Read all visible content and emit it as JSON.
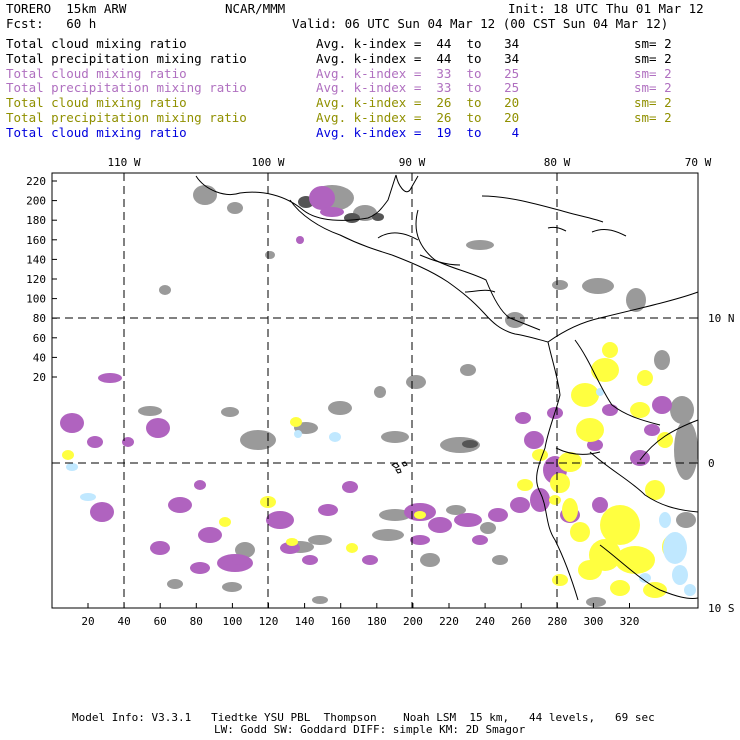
{
  "header": {
    "model": "TORERO  15km ARW",
    "org": "NCAR/MMM",
    "init": "Init: 18 UTC Thu 01 Mar 12",
    "fcst": "Fcst:   60 h",
    "valid": "Valid: 06 UTC Sun 04 Mar 12 (00 CST Sun 04 Mar 12)"
  },
  "legend": [
    {
      "field": "Total cloud mixing ratio",
      "range": "Avg. k-index =  44  to   34",
      "sm": "sm= 2",
      "color": "#000000"
    },
    {
      "field": "Total precipitation mixing ratio",
      "range": "Avg. k-index =  44  to   34",
      "sm": "sm= 2",
      "color": "#000000"
    },
    {
      "field": "Total cloud mixing ratio",
      "range": "Avg. k-index =  33  to   25",
      "sm": "sm= 2",
      "color": "#b070c0"
    },
    {
      "field": "Total precipitation mixing ratio",
      "range": "Avg. k-index =  33  to   25",
      "sm": "sm= 2",
      "color": "#b070c0"
    },
    {
      "field": "Total cloud mixing ratio",
      "range": "Avg. k-index =  26  to   20",
      "sm": "sm= 2",
      "color": "#909000"
    },
    {
      "field": "Total precipitation mixing ratio",
      "range": "Avg. k-index =  26  to   20",
      "sm": "sm= 2",
      "color": "#909000"
    },
    {
      "field": "Total cloud mixing ratio",
      "range": "Avg. k-index =  19  to    4",
      "sm": "",
      "color": "#0000dd"
    }
  ],
  "map": {
    "left_ticks": [
      "220",
      "200",
      "180",
      "160",
      "140",
      "120",
      "100",
      "80",
      "60",
      "40",
      "20"
    ],
    "bottom_ticks": [
      "20",
      "40",
      "60",
      "80",
      "100",
      "120",
      "140",
      "160",
      "180",
      "200",
      "220",
      "240",
      "260",
      "280",
      "300",
      "320"
    ],
    "top_lon_labels": [
      "110 W",
      "100 W",
      "90 W",
      "80 W",
      "70 W"
    ],
    "right_lat_labels": [
      "10 N",
      "0",
      "10 S"
    ],
    "colors": {
      "gray": "#9a9a9a",
      "dark": "#555555",
      "purple": "#b063bf",
      "yellow": "#ffff40",
      "lightblue": "#c0e8ff"
    }
  },
  "footer": {
    "line1": "Model Info: V3.3.1   Tiedtke YSU PBL  Thompson    Noah LSM  15 km,   44 levels,   69 sec",
    "line2": "LW: Godd SW: Goddard DIFF: simple KM: 2D Smagor"
  }
}
